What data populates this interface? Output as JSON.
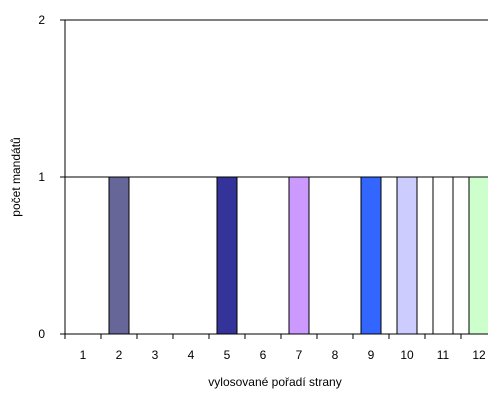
{
  "chart_data": {
    "type": "bar",
    "title": "",
    "xlabel": "vylosované pořadí strany",
    "ylabel": "počet mandátů",
    "categories": [
      "1",
      "2",
      "3",
      "4",
      "5",
      "6",
      "7",
      "8",
      "9",
      "10",
      "11",
      "12"
    ],
    "values": [
      0,
      1,
      0,
      0,
      1,
      0,
      1,
      0,
      1,
      1,
      1,
      1
    ],
    "bar_colors": [
      "#ffffff",
      "#666699",
      "#ffffff",
      "#ffffff",
      "#333399",
      "#ffffff",
      "#cc99ff",
      "#ffffff",
      "#3366ff",
      "#ccccff",
      "#ffffff",
      "#ccffcc"
    ],
    "ylim": [
      0,
      2
    ],
    "yticks": [
      "0",
      "1",
      "2"
    ],
    "gridlines": [
      1,
      2
    ],
    "grid": true,
    "legend": "none"
  }
}
